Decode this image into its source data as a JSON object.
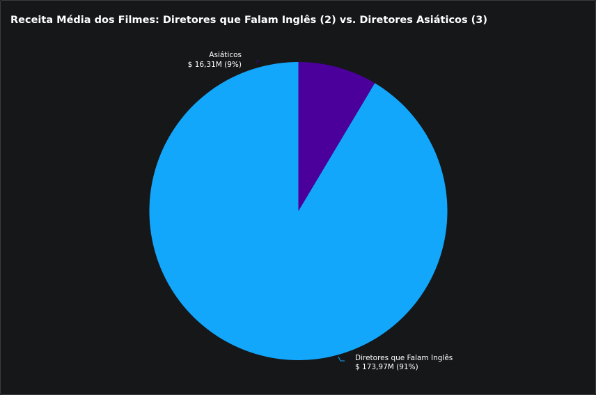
{
  "chart_data": {
    "type": "pie",
    "title": "Receita Média dos Filmes: Diretores que Falam Inglês (2) vs. Diretores Asiáticos (3)",
    "slices": [
      {
        "label": "Diretores que Falam Inglês",
        "value": 173.97,
        "value_label": "$ 173,97M (91%)",
        "percent": 91,
        "color": "#13a7fb"
      },
      {
        "label": "Asiáticos",
        "value": 16.31,
        "value_label": "$ 16,31M (9%)",
        "percent": 9,
        "color": "#4b009c"
      }
    ],
    "start_angle_deg": 0,
    "direction": "counterclockwise"
  },
  "colors": {
    "background": "#161719",
    "text": "#ffffff"
  }
}
